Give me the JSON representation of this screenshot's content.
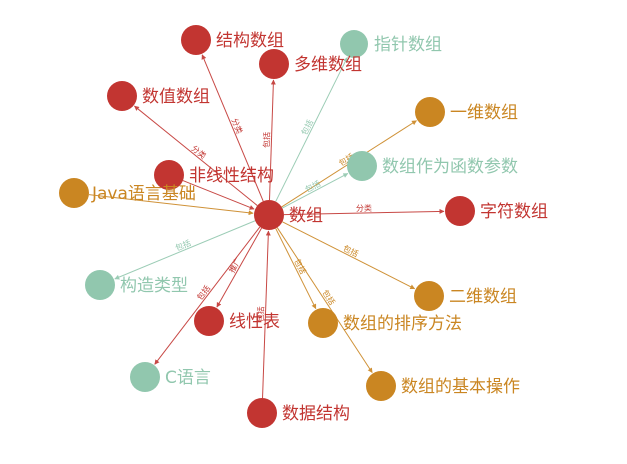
{
  "colors": {
    "red": "#c23531",
    "orange": "#ca8622",
    "teal": "#91c7ae"
  },
  "center": {
    "label": "数组",
    "color": "red"
  },
  "nodes": [
    {
      "id": "jiegou",
      "label": "结构数组",
      "color": "red"
    },
    {
      "id": "zhizhen",
      "label": "指针数组",
      "color": "teal"
    },
    {
      "id": "duowei",
      "label": "多维数组",
      "color": "red"
    },
    {
      "id": "shuzhi",
      "label": "数值数组",
      "color": "red"
    },
    {
      "id": "yiwei",
      "label": "一维数组",
      "color": "orange"
    },
    {
      "id": "hanshu",
      "label": "数组作为函数参数",
      "color": "teal"
    },
    {
      "id": "feixian",
      "label": "非线性结构",
      "color": "red"
    },
    {
      "id": "java",
      "label": "Java语言基础",
      "color": "orange"
    },
    {
      "id": "zifu",
      "label": "字符数组",
      "color": "red"
    },
    {
      "id": "gouzao",
      "label": "构造类型",
      "color": "teal"
    },
    {
      "id": "erwei",
      "label": "二维数组",
      "color": "orange"
    },
    {
      "id": "xianxing",
      "label": "线性表",
      "color": "red"
    },
    {
      "id": "paixu",
      "label": "数组的排序方法",
      "color": "orange"
    },
    {
      "id": "cyuyan",
      "label": "C语言",
      "color": "teal"
    },
    {
      "id": "jiben",
      "label": "数组的基本操作",
      "color": "orange"
    },
    {
      "id": "shuju",
      "label": "数据结构",
      "color": "red"
    }
  ],
  "edges": [
    {
      "from": "center",
      "to": "jiegou",
      "label": "分类",
      "color": "red"
    },
    {
      "from": "center",
      "to": "zhizhen",
      "label": "包括",
      "color": "teal"
    },
    {
      "from": "center",
      "to": "duowei",
      "label": "包括",
      "color": "red"
    },
    {
      "from": "center",
      "to": "shuzhi",
      "label": "分类",
      "color": "red"
    },
    {
      "from": "center",
      "to": "yiwei",
      "label": "包括",
      "color": "orange"
    },
    {
      "from": "center",
      "to": "hanshu",
      "label": "包括",
      "color": "teal"
    },
    {
      "from": "center",
      "to": "zifu",
      "label": "分类",
      "color": "red"
    },
    {
      "from": "center",
      "to": "gouzao",
      "label": "包括",
      "color": "teal"
    },
    {
      "from": "center",
      "to": "erwei",
      "label": "包括",
      "color": "orange"
    },
    {
      "from": "center",
      "to": "paixu",
      "label": "包括",
      "color": "orange"
    },
    {
      "from": "center",
      "to": "jiben",
      "label": "包括",
      "color": "orange"
    },
    {
      "from": "center",
      "to": "cyuyan",
      "label": "包括",
      "color": "red"
    },
    {
      "from": "center",
      "to": "xianxing",
      "label": "推广",
      "color": "red"
    },
    {
      "from": "shuju",
      "to": "center",
      "label": "包括",
      "color": "red"
    },
    {
      "from": "feixian",
      "to": "center",
      "label": "",
      "color": "red"
    },
    {
      "from": "java",
      "to": "center",
      "label": "",
      "color": "orange"
    }
  ]
}
